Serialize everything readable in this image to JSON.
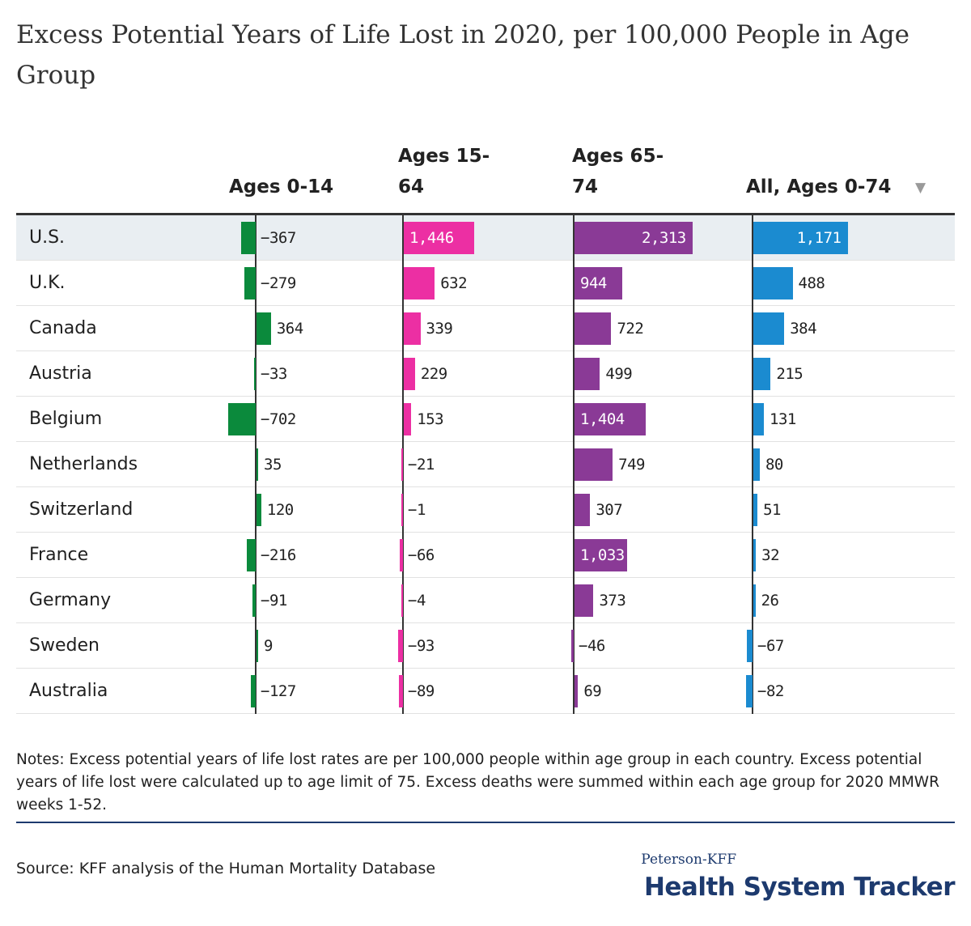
{
  "chart_data": {
    "type": "bar",
    "title": "Excess Potential Years of Life Lost in 2020, per 100,000 People in Age Group",
    "categories": [
      "U.S.",
      "U.K.",
      "Canada",
      "Austria",
      "Belgium",
      "Netherlands",
      "Switzerland",
      "France",
      "Germany",
      "Sweden",
      "Australia"
    ],
    "highlight_category": "U.S.",
    "sort_indicator": "▼",
    "series": [
      {
        "name": "Ages 0-14",
        "color": "#0b8a3c",
        "values": [
          -367,
          -279,
          364,
          -33,
          -702,
          35,
          120,
          -216,
          -91,
          9,
          -127
        ],
        "labels": [
          "−367",
          "−279",
          "364",
          "−33",
          "−702",
          "35",
          "120",
          "−216",
          "−91",
          "9",
          "−127"
        ]
      },
      {
        "name": "Ages 15-64",
        "color": "#ec2fa3",
        "values": [
          1446,
          632,
          339,
          229,
          153,
          -21,
          -1,
          -66,
          -4,
          -93,
          -89
        ],
        "labels": [
          "1,446",
          "632",
          "339",
          "229",
          "153",
          "−21",
          "−1",
          "−66",
          "−4",
          "−93",
          "−89"
        ]
      },
      {
        "name": "Ages 65-74",
        "color": "#8a3a96",
        "values": [
          2313,
          944,
          722,
          499,
          1404,
          749,
          307,
          1033,
          373,
          -46,
          69
        ],
        "labels": [
          "2,313",
          "944",
          "722",
          "499",
          "1,404",
          "749",
          "307",
          "1,033",
          "373",
          "−46",
          "69"
        ]
      },
      {
        "name": "All, Ages 0-74",
        "color": "#1b8bd0",
        "values": [
          1171,
          488,
          384,
          215,
          131,
          80,
          51,
          32,
          26,
          -67,
          -82
        ],
        "labels": [
          "1,171",
          "488",
          "384",
          "215",
          "131",
          "80",
          "51",
          "32",
          "26",
          "−67",
          "−82"
        ]
      }
    ],
    "column_headers": [
      {
        "line1": "Ages 0-14",
        "line2": ""
      },
      {
        "line1": "Ages 15-",
        "line2": "64"
      },
      {
        "line1": "Ages 65-",
        "line2": "74"
      },
      {
        "line1": "All, Ages 0-74",
        "line2": ""
      }
    ]
  },
  "notes": "Notes: Excess potential years of life lost rates are per 100,000 people within age group in each country. Excess potential years of life lost were calculated up to age limit of 75. Excess deaths were summed within each age group for 2020 MMWR weeks 1-52.",
  "source": "Source: KFF analysis of the Human Mortality Database",
  "brand": {
    "small": "Peterson-KFF",
    "big": "Health System Tracker"
  }
}
